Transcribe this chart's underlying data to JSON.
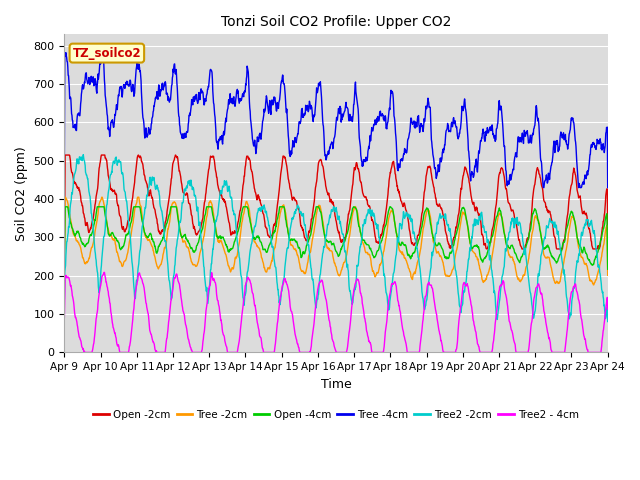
{
  "title": "Tonzi Soil CO2 Profile: Upper CO2",
  "xlabel": "Time",
  "ylabel": "Soil CO2 (ppm)",
  "ylim": [
    0,
    830
  ],
  "yticks": [
    0,
    100,
    200,
    300,
    400,
    500,
    600,
    700,
    800
  ],
  "n_days": 15,
  "n_points": 1440,
  "plot_bg_color": "#dcdcdc",
  "series": [
    {
      "label": "Open -2cm",
      "color": "#dd0000",
      "linewidth": 1.0
    },
    {
      "label": "Tree -2cm",
      "color": "#ff9900",
      "linewidth": 1.0
    },
    {
      "label": "Open -4cm",
      "color": "#00cc00",
      "linewidth": 1.0
    },
    {
      "label": "Tree -4cm",
      "color": "#0000ee",
      "linewidth": 1.0
    },
    {
      "label": "Tree2 -2cm",
      "color": "#00cccc",
      "linewidth": 1.0
    },
    {
      "label": "Tree2 - 4cm",
      "color": "#ff00ff",
      "linewidth": 1.0
    }
  ],
  "annotation_text": "TZ_soilco2",
  "annotation_box_color": "#ffffcc",
  "annotation_border_color": "#cc9900",
  "annotation_text_color": "#cc0000",
  "grid_color": "#ffffff",
  "xtick_labels": [
    "Apr 9",
    "Apr 10",
    "Apr 11",
    "Apr 12",
    "Apr 13",
    "Apr 14",
    "Apr 15",
    "Apr 16",
    "Apr 17",
    "Apr 18",
    "Apr 19",
    "Apr 20",
    "Apr 21",
    "Apr 22",
    "Apr 23",
    "Apr 24"
  ]
}
